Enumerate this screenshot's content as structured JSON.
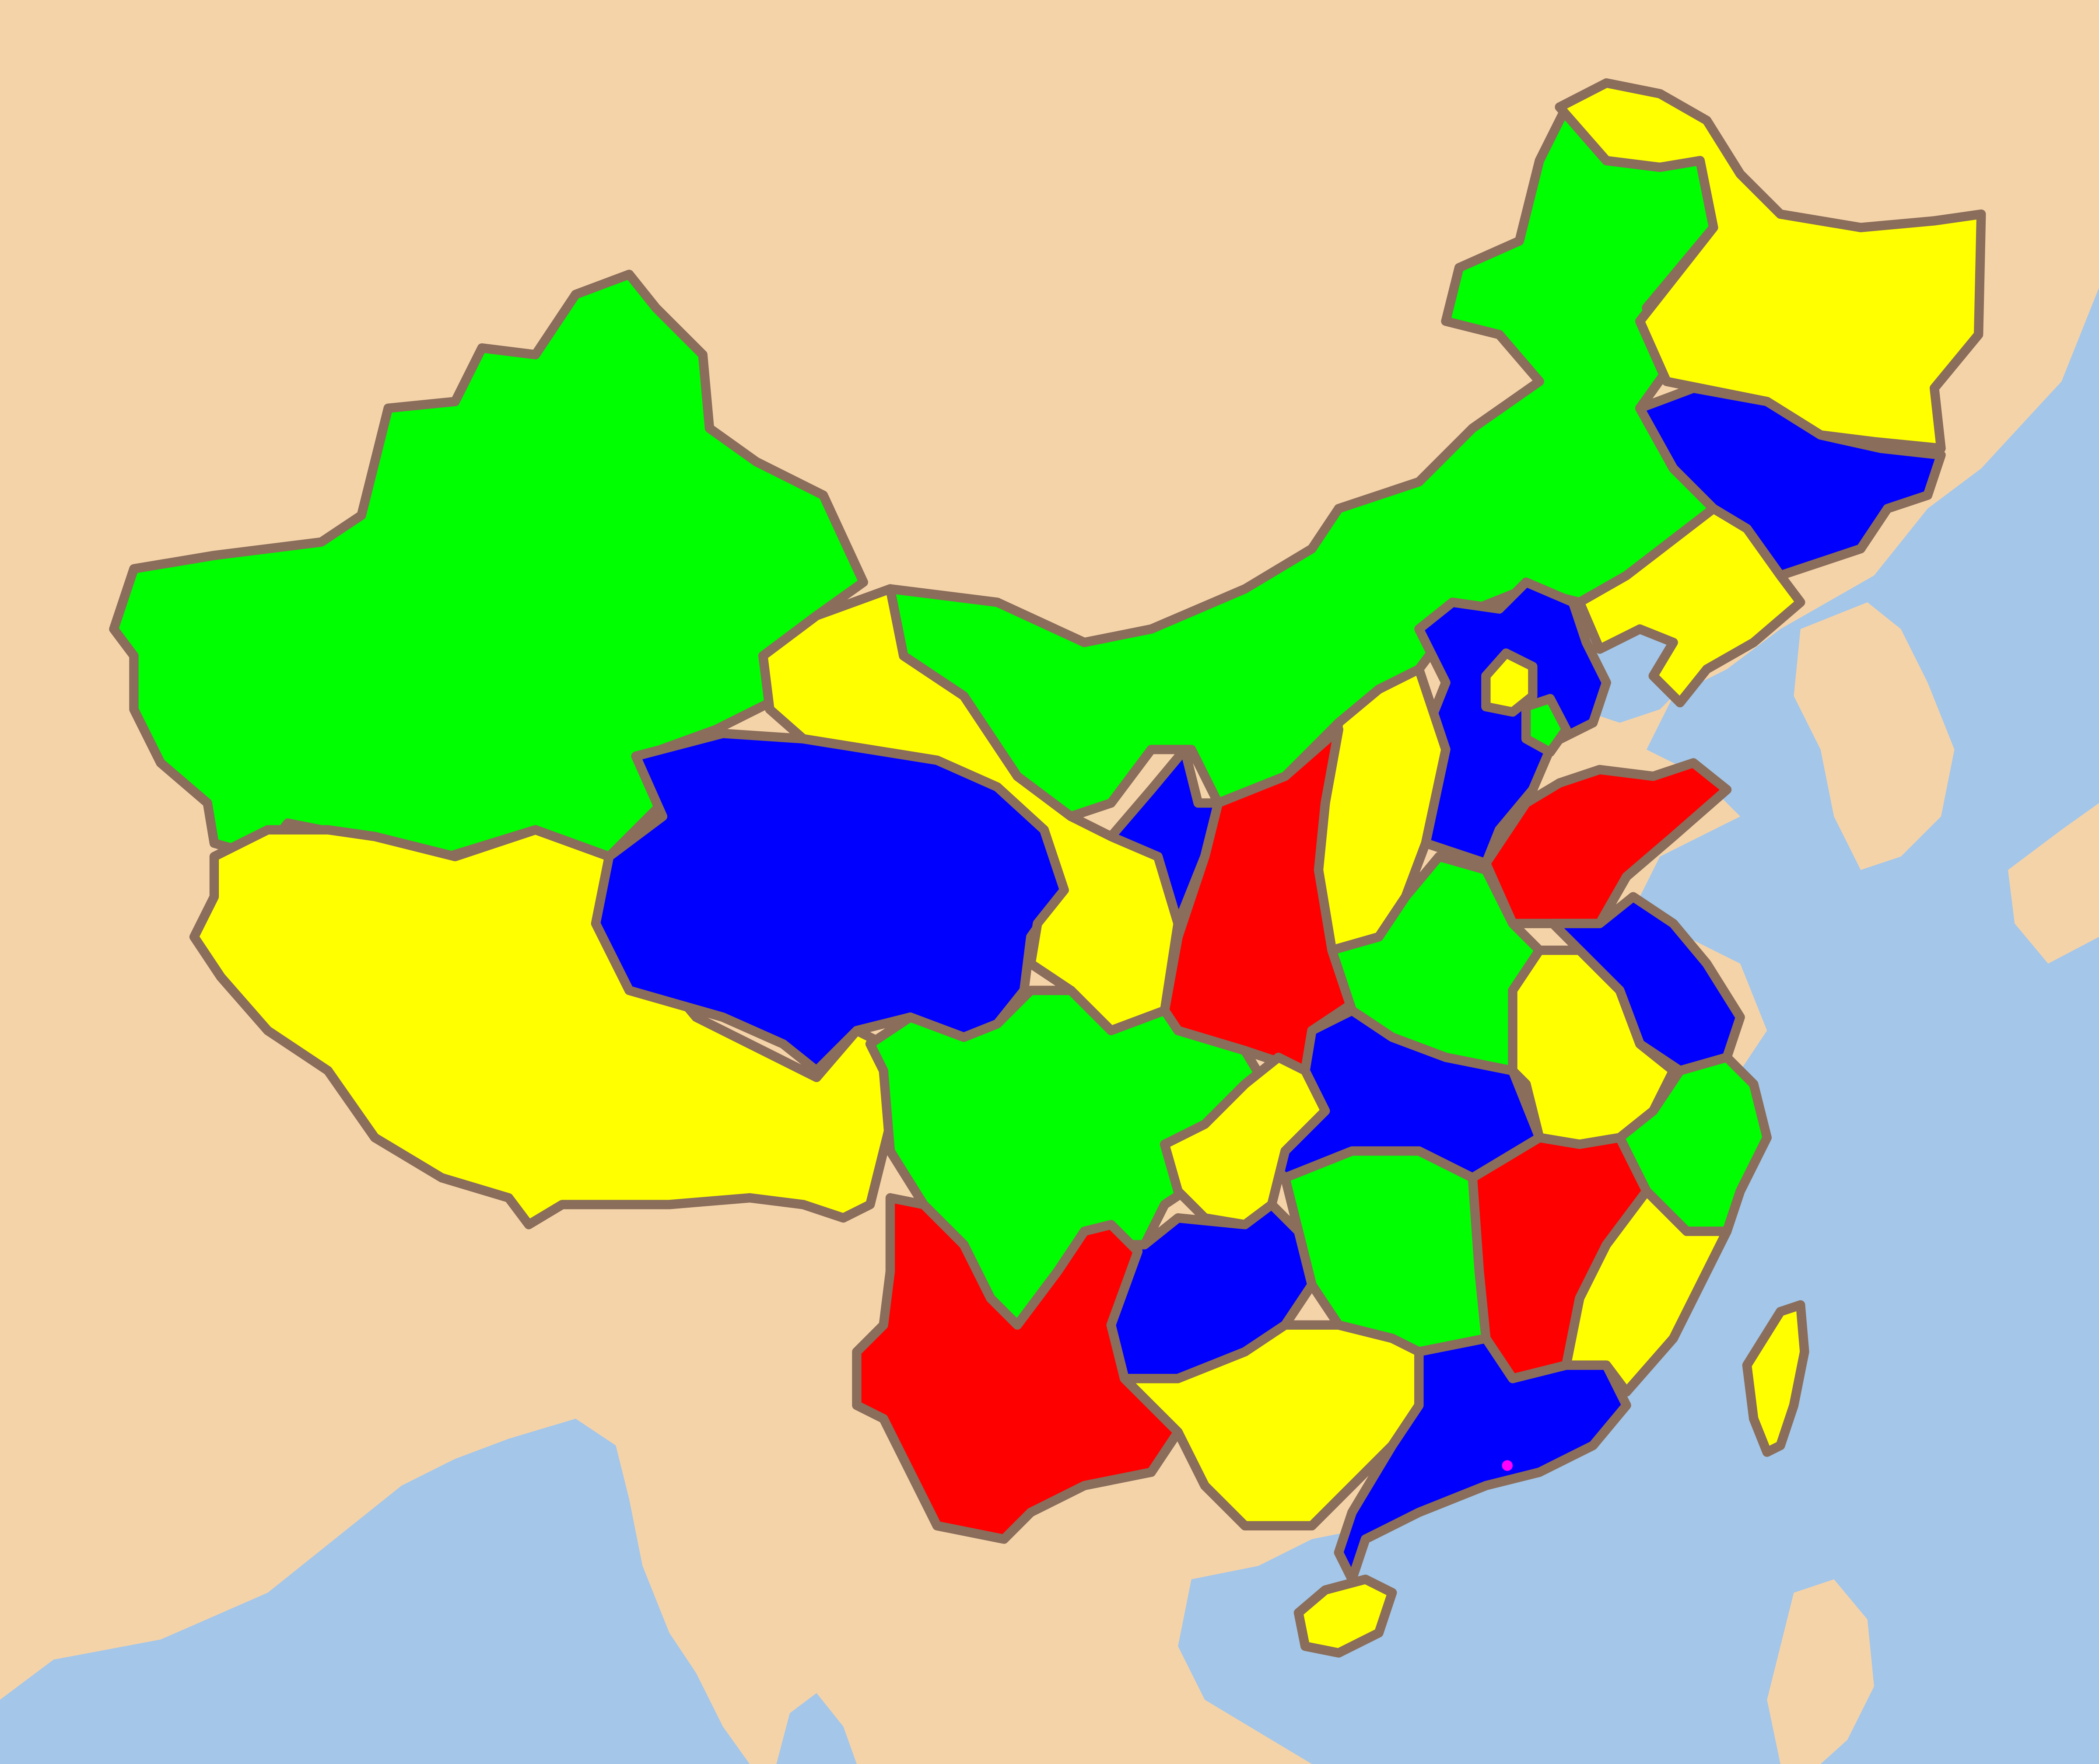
{
  "map": {
    "colors": {
      "land_background": "#f5d3a9",
      "sea": "#a3c6e9",
      "border": "#8a6d5a",
      "palette": [
        "#00ff00",
        "#ffff00",
        "#0000ff",
        "#ff0000"
      ],
      "special_marker": "#ff00ff"
    },
    "regions": [
      {
        "name": "xinjiang-region",
        "fill": "#00ff00"
      },
      {
        "name": "tibet-region",
        "fill": "#ffff00"
      },
      {
        "name": "qinghai-region",
        "fill": "#0000ff"
      },
      {
        "name": "gansu-region",
        "fill": "#ffff00"
      },
      {
        "name": "inner-mongolia-region",
        "fill": "#00ff00"
      },
      {
        "name": "heilongjiang-region",
        "fill": "#ffff00"
      },
      {
        "name": "jilin-region",
        "fill": "#0000ff"
      },
      {
        "name": "liaoning-region",
        "fill": "#ffff00"
      },
      {
        "name": "hebei-region",
        "fill": "#0000ff"
      },
      {
        "name": "beijing-region",
        "fill": "#ffff00"
      },
      {
        "name": "tianjin-region",
        "fill": "#00ff00"
      },
      {
        "name": "shanxi-region",
        "fill": "#ffff00"
      },
      {
        "name": "shaanxi-region",
        "fill": "#ff0000"
      },
      {
        "name": "ningxia-region",
        "fill": "#0000ff"
      },
      {
        "name": "shandong-region",
        "fill": "#ff0000"
      },
      {
        "name": "henan-region",
        "fill": "#00ff00"
      },
      {
        "name": "jiangsu-region",
        "fill": "#0000ff"
      },
      {
        "name": "anhui-region",
        "fill": "#ffff00"
      },
      {
        "name": "hubei-region",
        "fill": "#0000ff"
      },
      {
        "name": "sichuan-region",
        "fill": "#00ff00"
      },
      {
        "name": "chongqing-region",
        "fill": "#ffff00"
      },
      {
        "name": "zhejiang-region",
        "fill": "#00ff00"
      },
      {
        "name": "jiangxi-region",
        "fill": "#ff0000"
      },
      {
        "name": "hunan-region",
        "fill": "#00ff00"
      },
      {
        "name": "guizhou-region",
        "fill": "#0000ff"
      },
      {
        "name": "yunnan-region",
        "fill": "#ff0000"
      },
      {
        "name": "guangxi-region",
        "fill": "#ffff00"
      },
      {
        "name": "guangdong-region",
        "fill": "#0000ff"
      },
      {
        "name": "fujian-region",
        "fill": "#ffff00"
      },
      {
        "name": "taiwan-region",
        "fill": "#ffff00"
      },
      {
        "name": "hainan-region",
        "fill": "#ffff00"
      }
    ]
  }
}
